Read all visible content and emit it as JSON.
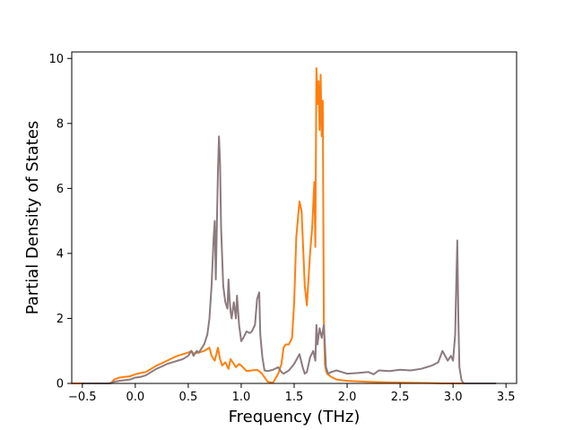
{
  "chart_data": {
    "type": "line",
    "title": "",
    "xlabel": "Frequency (THz)",
    "ylabel": "Partial Density of States",
    "xlim": [
      -0.6,
      3.6
    ],
    "ylim": [
      0,
      10.2
    ],
    "x_ticks": [
      -0.5,
      0.0,
      0.5,
      1.0,
      1.5,
      2.0,
      2.5,
      3.0,
      3.5
    ],
    "x_tick_labels": [
      "−0.5",
      "0.0",
      "0.5",
      "1.0",
      "1.5",
      "2.0",
      "2.5",
      "3.0",
      "3.5"
    ],
    "y_ticks": [
      0,
      2,
      4,
      6,
      8,
      10
    ],
    "y_tick_labels": [
      "0",
      "2",
      "4",
      "6",
      "8",
      "10"
    ],
    "grid": false,
    "legend": null,
    "series": [
      {
        "color": "#ff7f0e",
        "x": [
          -0.6,
          -0.23,
          -0.2,
          -0.15,
          -0.1,
          -0.05,
          0.0,
          0.05,
          0.1,
          0.15,
          0.2,
          0.25,
          0.3,
          0.35,
          0.4,
          0.45,
          0.5,
          0.53,
          0.55,
          0.6,
          0.65,
          0.7,
          0.72,
          0.75,
          0.78,
          0.8,
          0.82,
          0.85,
          0.88,
          0.9,
          0.93,
          0.95,
          0.98,
          1.0,
          1.03,
          1.05,
          1.1,
          1.15,
          1.18,
          1.2,
          1.25,
          1.3,
          1.35,
          1.38,
          1.4,
          1.42,
          1.45,
          1.48,
          1.5,
          1.52,
          1.55,
          1.57,
          1.6,
          1.62,
          1.65,
          1.67,
          1.69,
          1.7,
          1.71,
          1.72,
          1.73,
          1.74,
          1.75,
          1.76,
          1.77,
          1.78,
          1.79,
          1.8,
          1.81,
          1.83,
          1.85,
          1.9,
          2.0,
          2.2,
          2.4,
          2.6,
          2.8,
          2.9,
          3.0,
          3.03,
          3.05,
          3.06,
          3.1,
          3.4
        ],
        "y": [
          0.0,
          0.0,
          0.12,
          0.18,
          0.2,
          0.22,
          0.28,
          0.32,
          0.35,
          0.45,
          0.55,
          0.62,
          0.7,
          0.78,
          0.85,
          0.9,
          0.95,
          1.0,
          0.92,
          0.95,
          1.0,
          1.1,
          0.85,
          0.7,
          1.1,
          0.75,
          0.55,
          0.65,
          0.45,
          0.75,
          0.6,
          0.5,
          0.6,
          0.55,
          0.45,
          0.38,
          0.4,
          0.42,
          0.35,
          0.28,
          0.05,
          0.02,
          0.3,
          0.6,
          1.1,
          1.2,
          1.2,
          1.4,
          2.5,
          4.5,
          5.6,
          5.3,
          3.0,
          2.4,
          4.0,
          4.8,
          6.2,
          4.2,
          9.7,
          8.6,
          9.3,
          7.8,
          9.5,
          7.6,
          8.7,
          2.0,
          0.6,
          0.4,
          0.3,
          0.25,
          0.2,
          0.12,
          0.08,
          0.05,
          0.03,
          0.02,
          0.01,
          0.0,
          0.0,
          0.0,
          0.0,
          0.0,
          0.0,
          0.0
        ]
      },
      {
        "color": "#8c7a7e",
        "x": [
          -0.5,
          -0.25,
          -0.2,
          -0.15,
          -0.1,
          -0.05,
          0.0,
          0.05,
          0.1,
          0.15,
          0.2,
          0.25,
          0.3,
          0.35,
          0.4,
          0.45,
          0.5,
          0.53,
          0.55,
          0.58,
          0.6,
          0.65,
          0.68,
          0.7,
          0.72,
          0.74,
          0.75,
          0.76,
          0.78,
          0.79,
          0.8,
          0.81,
          0.83,
          0.85,
          0.87,
          0.88,
          0.89,
          0.9,
          0.91,
          0.93,
          0.95,
          0.96,
          0.98,
          1.0,
          1.02,
          1.05,
          1.08,
          1.1,
          1.13,
          1.15,
          1.17,
          1.18,
          1.2,
          1.22,
          1.25,
          1.3,
          1.35,
          1.38,
          1.4,
          1.45,
          1.5,
          1.55,
          1.58,
          1.6,
          1.62,
          1.65,
          1.68,
          1.7,
          1.71,
          1.72,
          1.74,
          1.76,
          1.78,
          1.79,
          1.8,
          1.82,
          1.85,
          1.9,
          2.0,
          2.1,
          2.2,
          2.25,
          2.3,
          2.4,
          2.5,
          2.6,
          2.7,
          2.75,
          2.8,
          2.83,
          2.86,
          2.9,
          2.95,
          2.98,
          3.0,
          3.02,
          3.03,
          3.04,
          3.05,
          3.06,
          3.08,
          3.1,
          3.4
        ],
        "y": [
          0.0,
          0.0,
          0.05,
          0.08,
          0.1,
          0.12,
          0.18,
          0.2,
          0.25,
          0.35,
          0.45,
          0.52,
          0.6,
          0.65,
          0.7,
          0.75,
          0.85,
          1.0,
          0.85,
          1.0,
          0.95,
          1.2,
          1.5,
          2.0,
          3.0,
          4.5,
          5.0,
          3.2,
          6.5,
          7.6,
          6.8,
          4.8,
          3.0,
          2.5,
          2.3,
          3.2,
          2.6,
          2.2,
          2.0,
          2.5,
          2.0,
          2.7,
          1.8,
          1.3,
          1.4,
          1.6,
          1.55,
          1.6,
          1.8,
          2.6,
          2.8,
          1.5,
          0.8,
          0.4,
          0.38,
          0.42,
          0.5,
          0.35,
          0.3,
          0.4,
          0.6,
          0.9,
          0.5,
          0.3,
          0.35,
          0.8,
          1.0,
          0.7,
          1.8,
          1.2,
          1.7,
          1.4,
          1.8,
          1.2,
          0.5,
          0.3,
          0.35,
          0.4,
          0.3,
          0.32,
          0.35,
          0.28,
          0.4,
          0.38,
          0.42,
          0.4,
          0.45,
          0.5,
          0.55,
          0.6,
          0.65,
          1.0,
          0.7,
          0.85,
          0.7,
          1.5,
          3.0,
          4.4,
          2.0,
          0.5,
          0.1,
          0.0,
          0.0
        ]
      }
    ]
  }
}
